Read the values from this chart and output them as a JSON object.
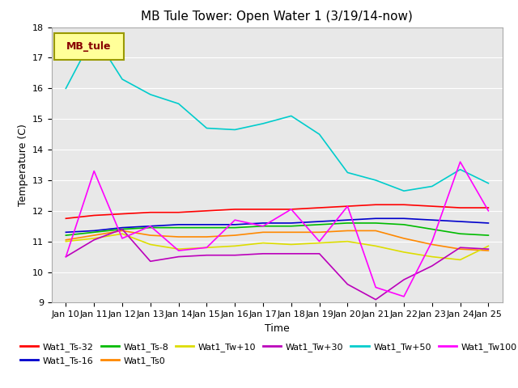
{
  "title": "MB Tule Tower: Open Water 1 (3/19/14-now)",
  "xlabel": "Time",
  "ylabel": "Temperature (C)",
  "ylim": [
    9.0,
    18.0
  ],
  "yticks": [
    9.0,
    10.0,
    11.0,
    12.0,
    13.0,
    14.0,
    15.0,
    16.0,
    17.0,
    18.0
  ],
  "x_labels": [
    "Jan 10",
    "Jan 11",
    "Jan 12",
    "Jan 13",
    "Jan 14",
    "Jan 15",
    "Jan 16",
    "Jan 17",
    "Jan 18",
    "Jan 19",
    "Jan 20",
    "Jan 21",
    "Jan 22",
    "Jan 23",
    "Jan 24",
    "Jan 25"
  ],
  "plot_bg_color": "#e8e8e8",
  "series": {
    "Wat1_Ts-32": {
      "color": "#ff0000",
      "data": [
        11.75,
        11.85,
        11.9,
        11.95,
        11.95,
        12.0,
        12.05,
        12.05,
        12.05,
        12.1,
        12.15,
        12.2,
        12.2,
        12.15,
        12.1,
        12.1
      ]
    },
    "Wat1_Ts-16": {
      "color": "#0000cc",
      "data": [
        11.3,
        11.35,
        11.45,
        11.5,
        11.55,
        11.55,
        11.55,
        11.6,
        11.6,
        11.65,
        11.7,
        11.75,
        11.75,
        11.7,
        11.65,
        11.6
      ]
    },
    "Wat1_Ts-8": {
      "color": "#00bb00",
      "data": [
        11.2,
        11.3,
        11.4,
        11.45,
        11.45,
        11.45,
        11.45,
        11.5,
        11.5,
        11.55,
        11.6,
        11.6,
        11.55,
        11.4,
        11.25,
        11.2
      ]
    },
    "Wat1_Ts0": {
      "color": "#ff8800",
      "data": [
        11.05,
        11.2,
        11.35,
        11.2,
        11.15,
        11.15,
        11.2,
        11.3,
        11.3,
        11.3,
        11.35,
        11.35,
        11.1,
        10.9,
        10.75,
        10.7
      ]
    },
    "Wat1_Tw+10": {
      "color": "#dddd00",
      "data": [
        11.0,
        11.1,
        11.25,
        10.9,
        10.75,
        10.8,
        10.85,
        10.95,
        10.9,
        10.95,
        11.0,
        10.85,
        10.65,
        10.5,
        10.4,
        10.85
      ]
    },
    "Wat1_Tw+30": {
      "color": "#bb00bb",
      "data": [
        10.5,
        11.05,
        11.4,
        10.35,
        10.5,
        10.55,
        10.55,
        10.6,
        10.6,
        10.6,
        9.6,
        9.1,
        9.75,
        10.2,
        10.8,
        10.75
      ]
    },
    "Wat1_Tw+50": {
      "color": "#00cccc",
      "data": [
        16.0,
        17.75,
        16.3,
        15.8,
        15.5,
        14.7,
        14.65,
        14.85,
        15.1,
        14.5,
        13.25,
        13.0,
        12.65,
        12.8,
        13.35,
        12.9
      ]
    },
    "Wat1_Tw100": {
      "color": "#ff00ff",
      "data": [
        10.5,
        13.3,
        11.1,
        11.5,
        10.7,
        10.8,
        11.7,
        11.5,
        12.05,
        11.0,
        12.15,
        9.5,
        9.2,
        11.0,
        13.6,
        12.0
      ]
    }
  },
  "legend_label": "MB_tule",
  "legend_box_facecolor": "#ffff99",
  "legend_box_edgecolor": "#999900",
  "legend_text_color": "#880000",
  "title_fontsize": 11,
  "axis_label_fontsize": 9,
  "tick_fontsize": 8
}
